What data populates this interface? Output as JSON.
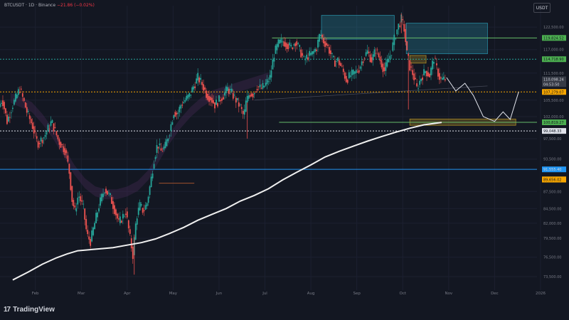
{
  "header": {
    "symbol": "BTCUSDT · 1D · Binance",
    "change": "−21.86 (−0.02%)",
    "currency": "USDT"
  },
  "brand": {
    "logo": "17",
    "name": "TradingView"
  },
  "chart_data": {
    "type": "candlestick",
    "y_scale": "log",
    "ylim": [
      71500,
      128000
    ],
    "x_axis_labels": [
      "Feb",
      "Mar",
      "Apr",
      "May",
      "Jun",
      "Jul",
      "Aug",
      "Sep",
      "Oct",
      "Nov",
      "Dec",
      "2026"
    ],
    "y_axis_ticks": [
      122500,
      117000,
      111500,
      105500,
      102000,
      97500,
      93500,
      87500,
      84500,
      82000,
      79500,
      76500,
      73500
    ],
    "y_axis_ticks_text": [
      "122,500.00",
      "117,000.00",
      "111,500.00",
      "105,500.00",
      "102,000.00",
      "97,500.00",
      "93,500.00",
      "87,500.00",
      "84,500.00",
      "82,000.00",
      "79,500.00",
      "76,500.00",
      "73,500.00"
    ],
    "price_labels": [
      {
        "text": "119,824.52",
        "value": 119824.52,
        "color": "#4caf50"
      },
      {
        "text": "114,718.90",
        "value": 114718.9,
        "color": "#4caf50"
      },
      {
        "text": "110,098.24",
        "value": 110098.24,
        "color": "#363a45"
      },
      {
        "text": "04:53:50",
        "value": 109000,
        "color": "#363a45"
      },
      {
        "text": "107,279.07",
        "value": 107279.07,
        "color": "#f7a600"
      },
      {
        "text": "100,819.27",
        "value": 100819.27,
        "color": "#4caf50"
      },
      {
        "text": "99,048.33",
        "value": 99048.33,
        "color": "#e0e3eb"
      },
      {
        "text": "91,555.40",
        "value": 91555.4,
        "color": "#2196f3"
      },
      {
        "text": "89,701.25",
        "value": 89701.25,
        "color": "#f7a600"
      },
      {
        "text": "89,656.02",
        "value": 89656.02,
        "color": "#f7a600"
      }
    ],
    "levels": [
      {
        "value": 119824.52,
        "style": "solid",
        "color": "#66bb6a"
      },
      {
        "value": 114718.9,
        "style": "dotted",
        "color": "#26a69a"
      },
      {
        "value": 107279.07,
        "style": "dotted",
        "color": "#f7a600"
      },
      {
        "value": 100819.27,
        "style": "solid",
        "color": "#66bb6a"
      },
      {
        "value": 99048.33,
        "style": "dotted",
        "color": "#e0e3eb"
      },
      {
        "value": 91555.4,
        "style": "solid",
        "color": "#2196f3"
      }
    ],
    "zones": [
      {
        "from_day": 455,
        "to_day": 558,
        "low": 119500,
        "high": 125500,
        "color": "#2a9fb8"
      },
      {
        "from_day": 575,
        "to_day": 690,
        "low": 116000,
        "high": 123500,
        "color": "#2a9fb8"
      },
      {
        "from_day": 580,
        "to_day": 603,
        "low": 113800,
        "high": 115600,
        "color": "#c9a227"
      },
      {
        "from_day": 580,
        "to_day": 730,
        "low": 100200,
        "high": 101500,
        "color": "#c9a227"
      }
    ],
    "ohlc_path": [
      [
        0,
        104000
      ],
      [
        5,
        105800
      ],
      [
        12,
        101000
      ],
      [
        20,
        104500
      ],
      [
        30,
        108000
      ],
      [
        40,
        103000
      ],
      [
        48,
        100000
      ],
      [
        55,
        96500
      ],
      [
        65,
        98000
      ],
      [
        75,
        101000
      ],
      [
        85,
        97000
      ],
      [
        95,
        95000
      ],
      [
        100,
        91000
      ],
      [
        104,
        86000
      ],
      [
        108,
        84000
      ],
      [
        113,
        87000
      ],
      [
        120,
        84500
      ],
      [
        125,
        80000
      ],
      [
        130,
        79000
      ],
      [
        136,
        82000
      ],
      [
        142,
        85000
      ],
      [
        150,
        88000
      ],
      [
        158,
        86500
      ],
      [
        165,
        84000
      ],
      [
        170,
        82000
      ],
      [
        175,
        83000
      ],
      [
        180,
        84000
      ],
      [
        186,
        79500
      ],
      [
        190,
        76800
      ],
      [
        195,
        83000
      ],
      [
        200,
        85000
      ],
      [
        205,
        84000
      ],
      [
        210,
        85500
      ],
      [
        215,
        89000
      ],
      [
        220,
        93500
      ],
      [
        225,
        96500
      ],
      [
        230,
        95000
      ],
      [
        236,
        96000
      ],
      [
        242,
        99000
      ],
      [
        248,
        103000
      ],
      [
        253,
        102500
      ],
      [
        258,
        104500
      ],
      [
        264,
        105500
      ],
      [
        270,
        106500
      ],
      [
        276,
        108500
      ],
      [
        282,
        110500
      ],
      [
        288,
        109000
      ],
      [
        295,
        106500
      ],
      [
        300,
        106000
      ],
      [
        306,
        104500
      ],
      [
        312,
        105500
      ],
      [
        318,
        106500
      ],
      [
        324,
        108000
      ],
      [
        330,
        107000
      ],
      [
        336,
        105500
      ],
      [
        342,
        104000
      ],
      [
        347,
        102000
      ],
      [
        350,
        105000
      ],
      [
        355,
        107000
      ],
      [
        360,
        106800
      ],
      [
        366,
        108500
      ],
      [
        372,
        108000
      ],
      [
        378,
        109000
      ],
      [
        384,
        110500
      ],
      [
        390,
        116000
      ],
      [
        396,
        118500
      ],
      [
        402,
        119000
      ],
      [
        408,
        118300
      ],
      [
        414,
        117500
      ],
      [
        420,
        119000
      ],
      [
        426,
        117000
      ],
      [
        432,
        114500
      ],
      [
        438,
        115500
      ],
      [
        444,
        116000
      ],
      [
        450,
        117500
      ],
      [
        455,
        121000
      ],
      [
        460,
        119000
      ],
      [
        465,
        118000
      ],
      [
        470,
        116000
      ],
      [
        475,
        114000
      ],
      [
        480,
        114500
      ],
      [
        486,
        112500
      ],
      [
        492,
        110000
      ],
      [
        498,
        111000
      ],
      [
        504,
        111500
      ],
      [
        510,
        112500
      ],
      [
        516,
        115000
      ],
      [
        522,
        116500
      ],
      [
        528,
        114500
      ],
      [
        534,
        117000
      ],
      [
        540,
        114500
      ],
      [
        546,
        112000
      ],
      [
        550,
        114000
      ],
      [
        555,
        116000
      ],
      [
        560,
        119500
      ],
      [
        565,
        122500
      ],
      [
        570,
        124500
      ],
      [
        574,
        122000
      ],
      [
        578,
        116000
      ],
      [
        582,
        113000
      ],
      [
        587,
        111000
      ],
      [
        592,
        108000
      ],
      [
        598,
        110500
      ],
      [
        604,
        112000
      ],
      [
        610,
        111000
      ],
      [
        616,
        115000
      ],
      [
        620,
        112500
      ],
      [
        625,
        110000
      ],
      [
        630,
        110098
      ]
    ],
    "ma_series": [
      [
        18,
        73000
      ],
      [
        40,
        74200
      ],
      [
        60,
        75400
      ],
      [
        80,
        76400
      ],
      [
        95,
        77000
      ],
      [
        110,
        77500
      ],
      [
        140,
        77800
      ],
      [
        160,
        78000
      ],
      [
        180,
        78400
      ],
      [
        200,
        78800
      ],
      [
        220,
        79400
      ],
      [
        240,
        80300
      ],
      [
        260,
        81300
      ],
      [
        280,
        82500
      ],
      [
        300,
        83500
      ],
      [
        320,
        84500
      ],
      [
        340,
        85800
      ],
      [
        360,
        86800
      ],
      [
        380,
        88000
      ],
      [
        400,
        89600
      ],
      [
        420,
        91000
      ],
      [
        440,
        92400
      ],
      [
        460,
        93900
      ],
      [
        480,
        95000
      ],
      [
        500,
        96000
      ],
      [
        520,
        97000
      ],
      [
        540,
        97900
      ],
      [
        560,
        98800
      ],
      [
        580,
        99600
      ],
      [
        600,
        100300
      ],
      [
        615,
        100600
      ],
      [
        625,
        100800
      ]
    ],
    "projection": [
      [
        632,
        110500
      ],
      [
        645,
        107500
      ],
      [
        658,
        109200
      ],
      [
        670,
        106500
      ],
      [
        684,
        102000
      ],
      [
        700,
        101000
      ],
      [
        712,
        103000
      ],
      [
        722,
        101400
      ],
      [
        734,
        107300
      ]
    ],
    "channel_ribbon": [
      [
        15,
        106000
      ],
      [
        30,
        105000
      ],
      [
        45,
        104000
      ],
      [
        60,
        101500
      ],
      [
        75,
        98500
      ],
      [
        90,
        95000
      ],
      [
        105,
        91500
      ],
      [
        120,
        89000
      ],
      [
        135,
        87500
      ],
      [
        150,
        87000
      ],
      [
        165,
        87000
      ],
      [
        180,
        87500
      ],
      [
        195,
        88500
      ],
      [
        210,
        90500
      ],
      [
        225,
        94000
      ],
      [
        240,
        97500
      ],
      [
        255,
        100500
      ],
      [
        270,
        103000
      ],
      [
        285,
        105000
      ],
      [
        300,
        106500
      ],
      [
        320,
        107500
      ],
      [
        340,
        108500
      ],
      [
        360,
        109500
      ],
      [
        380,
        110500
      ]
    ]
  }
}
